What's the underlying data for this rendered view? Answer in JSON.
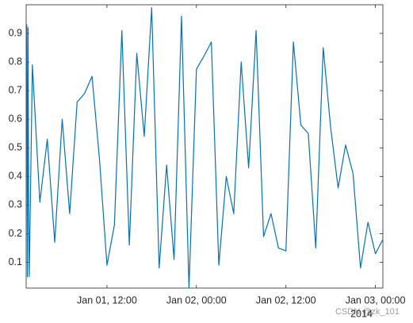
{
  "chart_data": {
    "type": "line",
    "x": [
      "2014-01-01T01:10",
      "2014-01-01T01:15",
      "2014-01-01T01:20",
      "2014-01-01T01:25",
      "2014-01-01T01:30",
      "2014-01-01T01:35",
      "2014-01-01T02:00",
      "2014-01-01T03:00",
      "2014-01-01T04:00",
      "2014-01-01T05:00",
      "2014-01-01T06:00",
      "2014-01-01T07:00",
      "2014-01-01T08:00",
      "2014-01-01T09:00",
      "2014-01-01T10:00",
      "2014-01-01T11:00",
      "2014-01-01T12:00",
      "2014-01-01T13:00",
      "2014-01-01T14:00",
      "2014-01-01T15:00",
      "2014-01-01T16:00",
      "2014-01-01T17:00",
      "2014-01-01T18:00",
      "2014-01-01T19:00",
      "2014-01-01T20:00",
      "2014-01-01T21:00",
      "2014-01-01T22:00",
      "2014-01-01T23:00",
      "2014-01-02T00:00",
      "2014-01-02T01:00",
      "2014-01-02T02:00",
      "2014-01-02T03:00",
      "2014-01-02T04:00",
      "2014-01-02T05:00",
      "2014-01-02T06:00",
      "2014-01-02T07:00",
      "2014-01-02T08:00",
      "2014-01-02T09:00",
      "2014-01-02T10:00",
      "2014-01-02T11:00",
      "2014-01-02T12:00",
      "2014-01-02T13:00",
      "2014-01-02T14:00",
      "2014-01-02T15:00",
      "2014-01-02T16:00",
      "2014-01-02T17:00",
      "2014-01-02T18:00",
      "2014-01-02T19:00",
      "2014-01-02T20:00",
      "2014-01-02T21:00",
      "2014-01-02T22:00",
      "2014-01-02T23:00",
      "2014-01-03T00:00",
      "2014-01-03T01:00"
    ],
    "values": [
      0.75,
      0.93,
      0.05,
      0.92,
      0.28,
      0.05,
      0.79,
      0.31,
      0.53,
      0.17,
      0.6,
      0.27,
      0.66,
      0.69,
      0.75,
      0.46,
      0.09,
      0.23,
      0.91,
      0.16,
      0.83,
      0.54,
      0.99,
      0.08,
      0.44,
      0.11,
      0.96,
      0.01,
      0.775,
      0.82,
      0.87,
      0.09,
      0.4,
      0.27,
      0.8,
      0.43,
      0.91,
      0.19,
      0.27,
      0.15,
      0.14,
      0.87,
      0.58,
      0.55,
      0.15,
      0.85,
      0.57,
      0.36,
      0.51,
      0.41,
      0.08,
      0.24,
      0.13,
      0.18
    ],
    "color": "#0072bd",
    "xlim": [
      "2014-01-01T01:10",
      "2014-01-03T01:00"
    ],
    "xticks": [
      {
        "value": "2014-01-01T12:00",
        "label": "Jan 01, 12:00"
      },
      {
        "value": "2014-01-02T00:00",
        "label": "Jan 02, 00:00"
      },
      {
        "value": "2014-01-02T12:00",
        "label": "Jan 02, 12:00"
      },
      {
        "value": "2014-01-03T00:00",
        "label": "Jan 03, 00:00"
      }
    ],
    "x_secondary_label": "2014",
    "ylim": [
      0.01,
      1
    ],
    "yticks": [
      0.1,
      0.2,
      0.3,
      0.4,
      0.5,
      0.6,
      0.7,
      0.8,
      0.9
    ],
    "grid": false,
    "watermark": "CSDN @zk_101"
  }
}
